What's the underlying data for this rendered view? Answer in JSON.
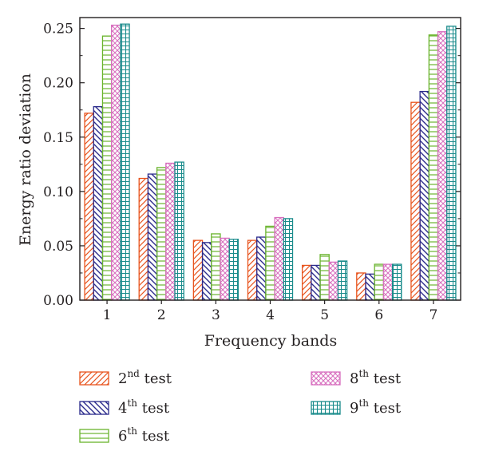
{
  "chart_data": {
    "type": "bar",
    "xlabel": "Frequency bands",
    "ylabel": "Energy ratio deviation",
    "categories": [
      "1",
      "2",
      "3",
      "4",
      "5",
      "6",
      "7"
    ],
    "ylim": [
      0,
      0.26
    ],
    "yticks": [
      "0.00",
      "0.05",
      "0.10",
      "0.15",
      "0.20",
      "0.25"
    ],
    "grid": false,
    "legend_position": "bottom",
    "series": [
      {
        "name": "2nd test",
        "ordinal": "2",
        "suffix": "nd",
        "rest": " test",
        "color": "#e8541e",
        "pattern": "diag-up",
        "values": [
          0.172,
          0.112,
          0.055,
          0.055,
          0.032,
          0.025,
          0.182
        ]
      },
      {
        "name": "4th test",
        "ordinal": "4",
        "suffix": "th",
        "rest": " test",
        "color": "#2b2b8c",
        "pattern": "diag-down",
        "values": [
          0.178,
          0.116,
          0.053,
          0.058,
          0.032,
          0.024,
          0.192
        ]
      },
      {
        "name": "6th test",
        "ordinal": "6",
        "suffix": "th",
        "rest": " test",
        "color": "#6ab42d",
        "pattern": "horizontal",
        "values": [
          0.243,
          0.122,
          0.061,
          0.068,
          0.042,
          0.033,
          0.244
        ]
      },
      {
        "name": "8th test",
        "ordinal": "8",
        "suffix": "th",
        "rest": " test",
        "color": "#d870bf",
        "pattern": "crosshatch",
        "values": [
          0.253,
          0.126,
          0.057,
          0.076,
          0.035,
          0.033,
          0.247
        ]
      },
      {
        "name": "9th test",
        "ordinal": "9",
        "suffix": "th",
        "rest": " test",
        "color": "#1b8c8c",
        "pattern": "grid",
        "values": [
          0.254,
          0.127,
          0.056,
          0.075,
          0.036,
          0.033,
          0.252
        ]
      }
    ]
  }
}
